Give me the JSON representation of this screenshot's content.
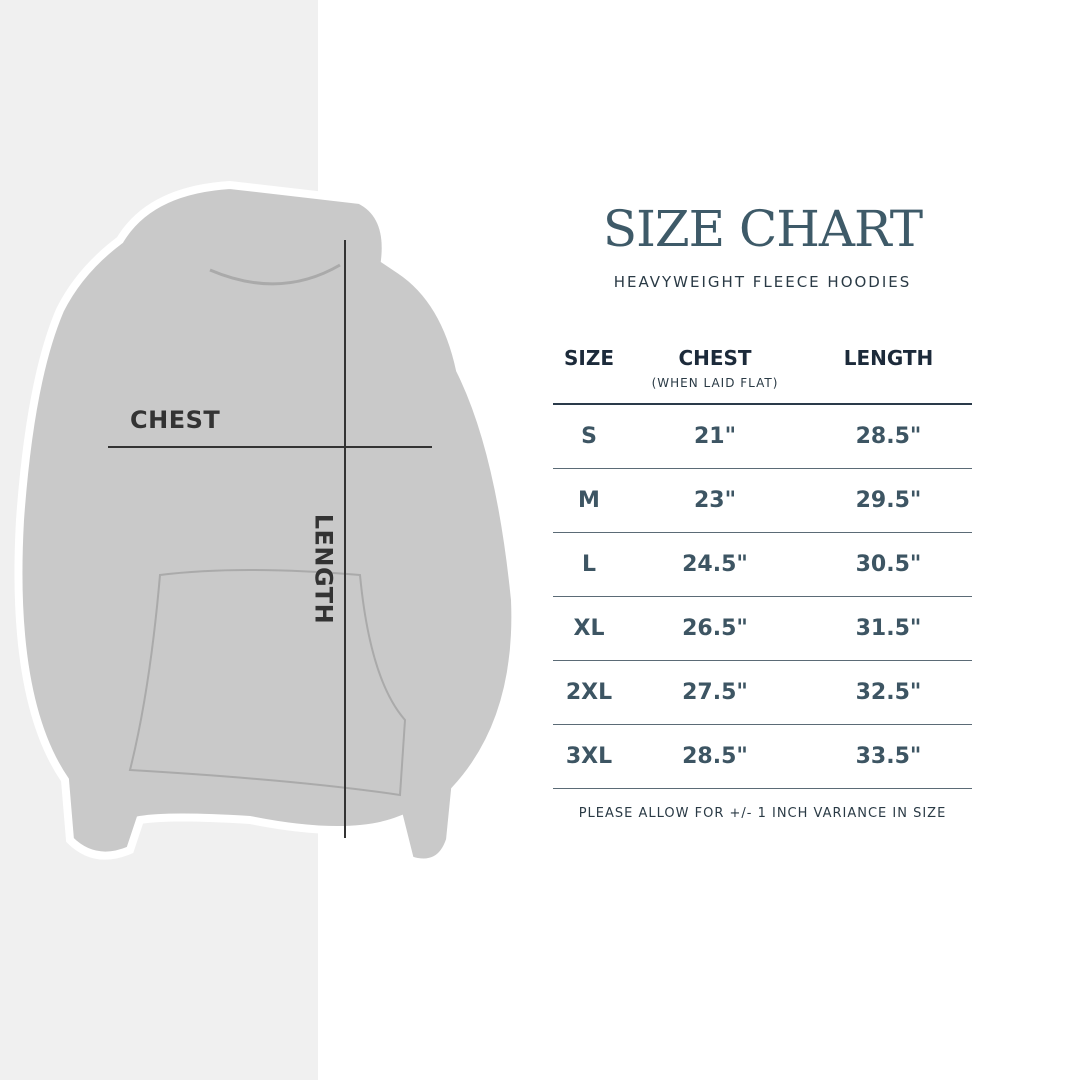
{
  "diagram": {
    "chest_label": "CHEST",
    "length_label": "LENGTH"
  },
  "header": {
    "title": "SIZE CHART",
    "subtitle": "HEAVYWEIGHT FLEECE HOODIES"
  },
  "table": {
    "columns": [
      {
        "label": "SIZE"
      },
      {
        "label": "CHEST",
        "sublabel": "(WHEN LAID FLAT)"
      },
      {
        "label": "LENGTH"
      }
    ],
    "rows": [
      [
        "S",
        "21\"",
        "28.5\""
      ],
      [
        "M",
        "23\"",
        "29.5\""
      ],
      [
        "L",
        "24.5\"",
        "30.5\""
      ],
      [
        "XL",
        "26.5\"",
        "31.5\""
      ],
      [
        "2XL",
        "27.5\"",
        "32.5\""
      ],
      [
        "3XL",
        "28.5\"",
        "33.5\""
      ]
    ]
  },
  "footer": {
    "note": "PLEASE ALLOW FOR +/- 1 INCH VARIANCE IN SIZE"
  },
  "colors": {
    "title": "#3e5a68",
    "header": "#1c2a3a",
    "values": "#3d5563",
    "hoodie": "#c9c9c9",
    "panel": "#f0f0f0"
  }
}
